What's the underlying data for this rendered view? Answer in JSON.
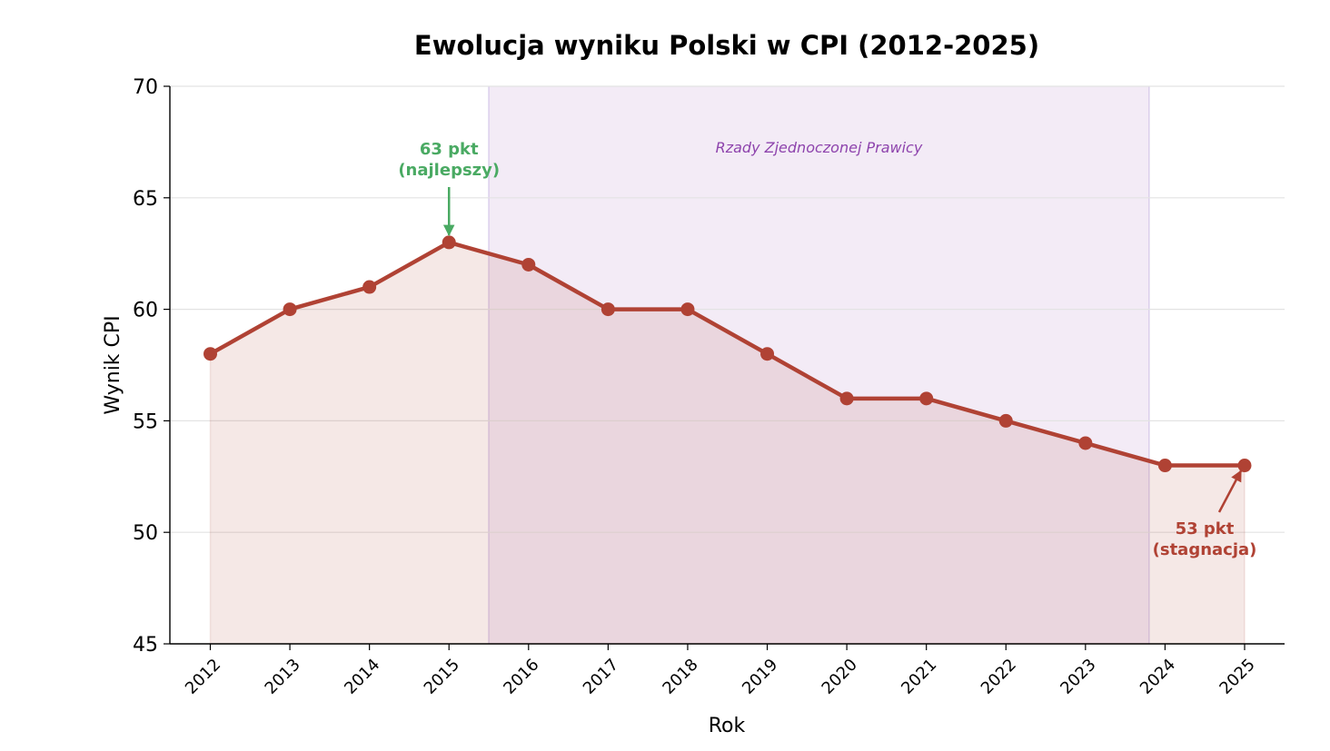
{
  "chart_data": {
    "type": "line",
    "title": "Ewolucja wyniku Polski w CPI (2012-2025)",
    "xlabel": "Rok",
    "ylabel": "Wynik CPI",
    "ylim": [
      45,
      70
    ],
    "yticks": [
      45,
      50,
      55,
      60,
      65,
      70
    ],
    "grid": "horizontal",
    "categories": [
      "2012",
      "2013",
      "2014",
      "2015",
      "2016",
      "2017",
      "2018",
      "2019",
      "2020",
      "2021",
      "2022",
      "2023",
      "2024",
      "2025"
    ],
    "series": [
      {
        "values": [
          58,
          60,
          61,
          63,
          62,
          60,
          60,
          58,
          56,
          56,
          55,
          54,
          53,
          53
        ]
      }
    ],
    "shaded_region": {
      "label": "Rzady Zjednoczonej Prawicy",
      "x_start": 2015.5,
      "x_end": 2023.8
    },
    "annotations": [
      {
        "line1": "63 pkt",
        "line2": "(najlepszy)",
        "x": "2015",
        "y": 63
      },
      {
        "line1": "53 pkt",
        "line2": "(stagnacja)",
        "x": "2025",
        "y": 53
      }
    ],
    "colors": {
      "line": "#b04234",
      "fill": "#f5e6e4",
      "region": "#ece1f1",
      "region_label": "#8e44ad",
      "best": "#4aaa63"
    }
  }
}
